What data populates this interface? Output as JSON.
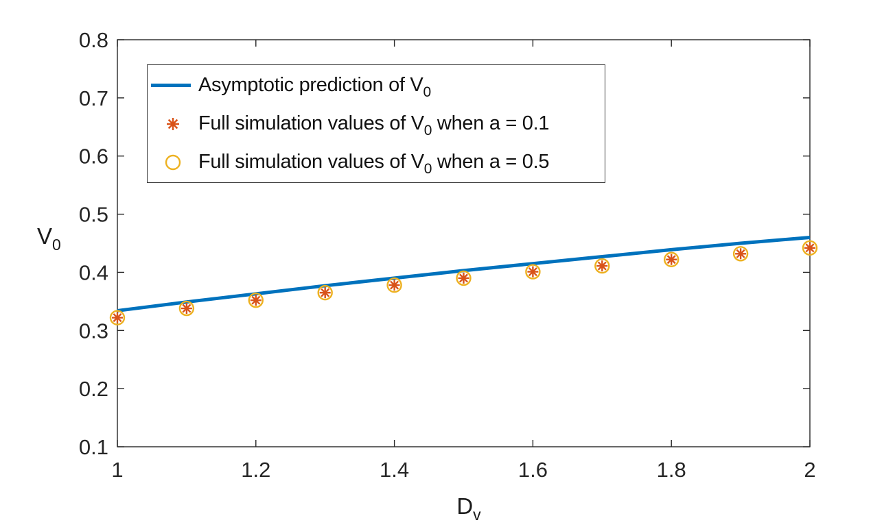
{
  "figure": {
    "background": "#ffffff",
    "axis_color": "#262626",
    "tick_label_color": "#262626",
    "text_color": "#1a1a1a"
  },
  "axes": {
    "ylabel": {
      "base": "V",
      "sub": "0"
    },
    "xlabel": {
      "base": "D",
      "sub": "v"
    }
  },
  "legend": {
    "items": [
      {
        "sample": "line",
        "color": "#0072BD",
        "text_prefix": "Asymptotic prediction of V",
        "text_sub": "0",
        "text_suffix": ""
      },
      {
        "sample": "asterisk",
        "color": "#D95319",
        "text_prefix": "Full simulation values of V",
        "text_sub": "0",
        "text_suffix": " when a = 0.1"
      },
      {
        "sample": "circle",
        "color": "#EDB120",
        "text_prefix": "Full simulation values of V",
        "text_sub": "0",
        "text_suffix": " when a = 0.5"
      }
    ]
  },
  "chart_data": {
    "type": "line",
    "title": "",
    "xlabel": "D_v",
    "ylabel": "V_0",
    "xlim": [
      1,
      2
    ],
    "ylim": [
      0.1,
      0.8
    ],
    "grid": false,
    "legend_position": "inside top-left",
    "x_ticks": [
      1,
      1.2,
      1.4,
      1.6,
      1.8,
      2
    ],
    "x_tick_labels": [
      "1",
      "1.2",
      "1.4",
      "1.6",
      "1.8",
      "2"
    ],
    "y_ticks": [
      0.1,
      0.2,
      0.3,
      0.4,
      0.5,
      0.6,
      0.7,
      0.8
    ],
    "y_tick_labels": [
      "0.1",
      "0.2",
      "0.3",
      "0.4",
      "0.5",
      "0.6",
      "0.7",
      "0.8"
    ],
    "x": [
      1.0,
      1.1,
      1.2,
      1.3,
      1.4,
      1.5,
      1.6,
      1.7,
      1.8,
      1.9,
      2.0
    ],
    "series": [
      {
        "name": "Asymptotic prediction of V_0",
        "style": "line",
        "color": "#0072BD",
        "line_width": 5,
        "values": [
          0.334,
          0.349,
          0.363,
          0.377,
          0.39,
          0.403,
          0.415,
          0.427,
          0.439,
          0.45,
          0.46
        ]
      },
      {
        "name": "Full simulation values of V_0 when a = 0.1",
        "style": "asterisk-marker",
        "color": "#D95319",
        "values": [
          0.322,
          0.338,
          0.352,
          0.365,
          0.378,
          0.39,
          0.401,
          0.411,
          0.422,
          0.432,
          0.442
        ]
      },
      {
        "name": "Full simulation values of V_0 when a = 0.5",
        "style": "circle-marker",
        "color": "#EDB120",
        "values": [
          0.322,
          0.338,
          0.352,
          0.365,
          0.378,
          0.39,
          0.401,
          0.411,
          0.422,
          0.432,
          0.442
        ]
      }
    ]
  }
}
